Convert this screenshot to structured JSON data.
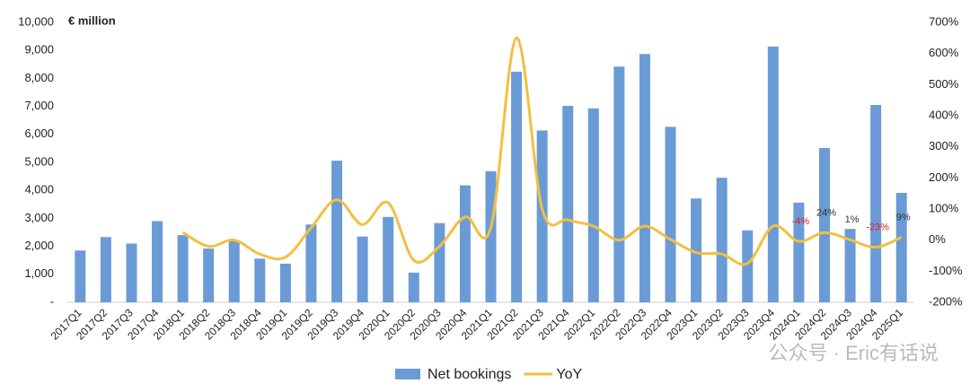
{
  "chart_data": {
    "type": "bar_line",
    "unit_label": "€ million",
    "watermark": "公众号 · Eric有话说",
    "categories": [
      "2017Q1",
      "2017Q2",
      "2017Q3",
      "2017Q4",
      "2018Q1",
      "2018Q2",
      "2018Q3",
      "2018Q4",
      "2019Q1",
      "2019Q2",
      "2019Q3",
      "2019Q4",
      "2020Q1",
      "2020Q2",
      "2020Q3",
      "2020Q4",
      "2021Q1",
      "2021Q2",
      "2021Q3",
      "2021Q4",
      "2022Q1",
      "2022Q2",
      "2022Q3",
      "2022Q4",
      "2023Q1",
      "2023Q2",
      "2023Q3",
      "2023Q4",
      "2024Q1",
      "2024Q2",
      "2024Q3",
      "2024Q4",
      "2025Q1"
    ],
    "series": [
      {
        "name": "Net bookings",
        "type": "bar",
        "color": "#6a9bd6",
        "values": [
          1850,
          2330,
          2100,
          2900,
          2400,
          1920,
          2200,
          1560,
          1380,
          2780,
          5060,
          2350,
          3050,
          1060,
          2830,
          4180,
          4680,
          8240,
          6140,
          7020,
          6930,
          8420,
          8870,
          6270,
          3710,
          4450,
          2570,
          9140,
          3560,
          5510,
          2620,
          7050,
          3910
        ]
      },
      {
        "name": "YoY",
        "type": "line",
        "axis": "y2",
        "color": "#f2c040",
        "values": [
          null,
          null,
          null,
          null,
          25,
          -20,
          0,
          -45,
          -55,
          40,
          130,
          50,
          120,
          -65,
          -20,
          75,
          40,
          650,
          100,
          65,
          45,
          0,
          45,
          2,
          -40,
          -45,
          -75,
          45,
          -4,
          24,
          1,
          -23,
          9
        ],
        "value_labels": [
          null,
          null,
          null,
          null,
          null,
          null,
          null,
          null,
          null,
          null,
          null,
          null,
          null,
          null,
          null,
          null,
          null,
          null,
          null,
          null,
          null,
          null,
          null,
          null,
          null,
          null,
          null,
          null,
          "-4%",
          "24%",
          "1%",
          "-23%",
          "9%"
        ]
      }
    ],
    "ylim": [
      0,
      10000
    ],
    "yticks": [
      {
        "value": 0,
        "label": "-"
      },
      {
        "value": 1000,
        "label": "1,000"
      },
      {
        "value": 2000,
        "label": "2,000"
      },
      {
        "value": 3000,
        "label": "3,000"
      },
      {
        "value": 4000,
        "label": "4,000"
      },
      {
        "value": 5000,
        "label": "5,000"
      },
      {
        "value": 6000,
        "label": "6,000"
      },
      {
        "value": 7000,
        "label": "7,000"
      },
      {
        "value": 8000,
        "label": "8,000"
      },
      {
        "value": 9000,
        "label": "9,000"
      },
      {
        "value": 10000,
        "label": "10,000"
      }
    ],
    "y2lim": [
      -200,
      700
    ],
    "y2ticks": [
      {
        "value": -200,
        "label": "-200%"
      },
      {
        "value": -100,
        "label": "-100%"
      },
      {
        "value": 0,
        "label": "0%"
      },
      {
        "value": 100,
        "label": "100%"
      },
      {
        "value": 200,
        "label": "200%"
      },
      {
        "value": 300,
        "label": "300%"
      },
      {
        "value": 400,
        "label": "400%"
      },
      {
        "value": 500,
        "label": "500%"
      },
      {
        "value": 600,
        "label": "600%"
      },
      {
        "value": 700,
        "label": "700%"
      }
    ],
    "legend": "bottom"
  }
}
